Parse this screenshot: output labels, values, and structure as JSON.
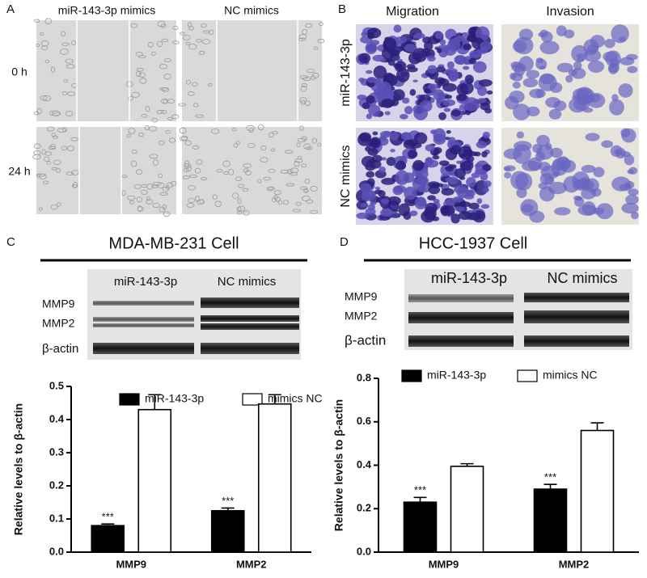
{
  "panel_a": {
    "label": "A",
    "columns": [
      "miR-143-3p mimics",
      "NC mimics"
    ],
    "rows": [
      "0 h",
      "24 h"
    ]
  },
  "panel_b": {
    "label": "B",
    "columns": [
      "Migration",
      "Invasion"
    ],
    "rows": [
      "miR-143-3p",
      "NC mimics"
    ]
  },
  "panel_c": {
    "label": "C",
    "title": "MDA-MB-231 Cell",
    "blot_columns": [
      "miR-143-3p",
      "NC mimics"
    ],
    "blot_rows": [
      "MMP9",
      "MMP2",
      "β-actin"
    ]
  },
  "panel_d": {
    "label": "D",
    "title": "HCC-1937 Cell",
    "blot_columns": [
      "miR-143-3p",
      "NC mimics"
    ],
    "blot_rows": [
      "MMP9",
      "MMP2",
      "β-actin"
    ]
  },
  "chart_data": [
    {
      "type": "bar",
      "y_label": "Relative levels to β-actin",
      "categories": [
        "MMP9",
        "MMP2"
      ],
      "series": [
        {
          "name": "miR-143-3p",
          "color": "#000000",
          "values": [
            0.08,
            0.125
          ],
          "errors": [
            0.005,
            0.008
          ],
          "annotations": [
            "***",
            "***"
          ]
        },
        {
          "name": "mimics NC",
          "color": "#ffffff",
          "values": [
            0.43,
            0.447
          ],
          "errors": [
            0.045,
            0.028
          ]
        }
      ],
      "ylim": [
        0,
        0.5
      ],
      "yticks": [
        {
          "value": 0,
          "label": "0.0"
        },
        0.1,
        0.2,
        0.3,
        0.4,
        0.5
      ]
    },
    {
      "type": "bar",
      "y_label": "Relative levels to β-actin",
      "categories": [
        "MMP9",
        "MMP2"
      ],
      "series": [
        {
          "name": "miR-143-3p",
          "color": "#000000",
          "values": [
            0.23,
            0.29
          ],
          "errors": [
            0.022,
            0.022
          ],
          "annotations": [
            "***",
            "***"
          ]
        },
        {
          "name": "mimics NC",
          "color": "#ffffff",
          "values": [
            0.395,
            0.56
          ],
          "errors": [
            0.012,
            0.035
          ]
        }
      ],
      "ylim": [
        0,
        0.8
      ],
      "yticks": [
        {
          "value": 0,
          "label": "0.0"
        },
        0.2,
        0.4,
        0.6,
        0.8
      ]
    }
  ]
}
